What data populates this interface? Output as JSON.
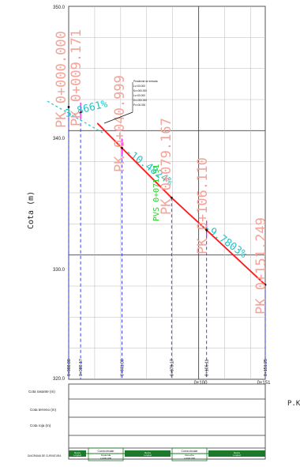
{
  "axis": {
    "ylabel": "Cota (m)",
    "xlabel_partial": "P.K",
    "y_ticks": [
      "350.0",
      "340.0",
      "330.0",
      "320.0"
    ],
    "x_ticks": [
      "0+100",
      "0+151"
    ]
  },
  "stations": [
    "0+000.00",
    "0+009.17",
    "0+041.00",
    "0+079.17",
    "0+106.11",
    "0+151.25"
  ],
  "pk_labels": [
    {
      "text": "PK 0+000.000"
    },
    {
      "text": "PK 0+009.171"
    },
    {
      "text": "PK 0+040.999"
    },
    {
      "text": "PK 0+079.167"
    },
    {
      "text": "PK 0+106.110"
    },
    {
      "text": "PK 0+151.249"
    }
  ],
  "pvs_label": "PVS 0+071.91",
  "slopes": [
    {
      "text": "-3.8661%"
    },
    {
      "text": "-10.4824%"
    },
    {
      "text": "-9.7803%"
    }
  ],
  "profile": {
    "grade_points": [
      {
        "pk": 0.0,
        "z": 341.9
      },
      {
        "pk": 9.171,
        "z": 341.5
      },
      {
        "pk": 40.999,
        "z": 338.6
      },
      {
        "pk": 79.167,
        "z": 334.6
      },
      {
        "pk": 106.11,
        "z": 332.0
      },
      {
        "pk": 151.249,
        "z": 327.6
      }
    ]
  },
  "callout_lines": [
    "Pendiente de entrada",
    "Lv=00.000",
    "Kv=000.000",
    "Lv=00.000",
    "Kv=000.000",
    "Pv=00.000"
  ],
  "table": {
    "rows": [
      "Cota rasante (m)",
      "Cota terreno (m)",
      "Cota roja (m)",
      "DIAGRAMA DE CURVATURA"
    ],
    "curvature_boxes": [
      {
        "title": "Recta",
        "sub": "Longitud"
      },
      {
        "title": "Curva circular",
        "sub": "Izquierda",
        "extra": "L=000.000"
      },
      {
        "title": "Recta",
        "sub": "Longitud"
      },
      {
        "title": "Curva circular",
        "sub": "Derecha",
        "extra": "L=000.000"
      },
      {
        "title": "Recta",
        "sub": "Longitud"
      }
    ]
  },
  "colors": {
    "grid": "#b8b8b8",
    "grade": "#ff1a1a",
    "pk_label": "#f4a49a",
    "slope": "#22c4c4",
    "pvs": "#33cc33",
    "station": "#2c2cff",
    "vertical_marker": "#ff00ff",
    "curv_fill": "#1c7a2a"
  }
}
